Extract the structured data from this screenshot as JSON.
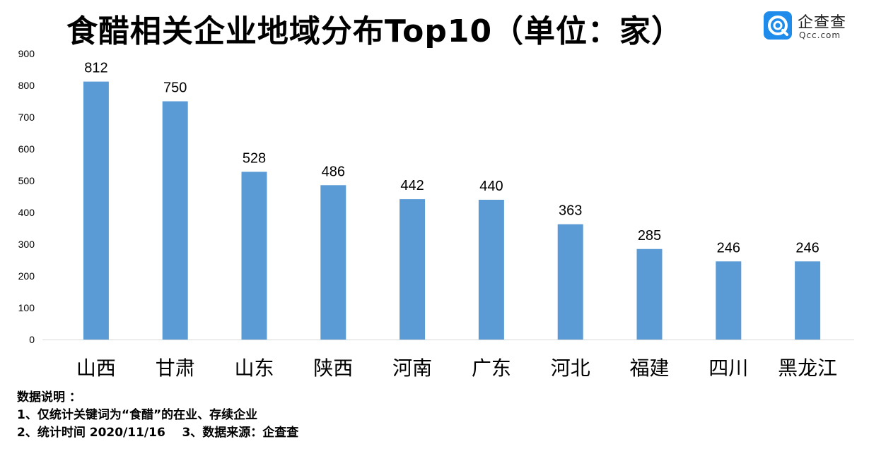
{
  "title": "食醋相关企业地域分布Top10（单位：家）",
  "logo": {
    "name_cn": "企查查",
    "name_en": "Qcc.com"
  },
  "colors": {
    "bar": "#5b9bd5",
    "axis": "#d9d9d9",
    "text": "#000000"
  },
  "chart_data": {
    "type": "bar",
    "title": "食醋相关企业地域分布Top10（单位：家）",
    "categories": [
      "山西",
      "甘肃",
      "山东",
      "陕西",
      "河南",
      "广东",
      "河北",
      "福建",
      "四川",
      "黑龙江"
    ],
    "values": [
      812,
      750,
      528,
      486,
      442,
      440,
      363,
      285,
      246,
      246
    ],
    "ylim": [
      0,
      900
    ],
    "yticks": [
      0,
      100,
      200,
      300,
      400,
      500,
      600,
      700,
      800,
      900
    ],
    "xlabel": "",
    "ylabel": "",
    "grid": false,
    "data_labels": true
  },
  "notes": {
    "header": "数据说明 ：",
    "line1": "1、仅统计关键词为“食醋”的在业、存续企业",
    "line2": "2、统计时间 2020/11/16    3、数据来源：企查查"
  }
}
